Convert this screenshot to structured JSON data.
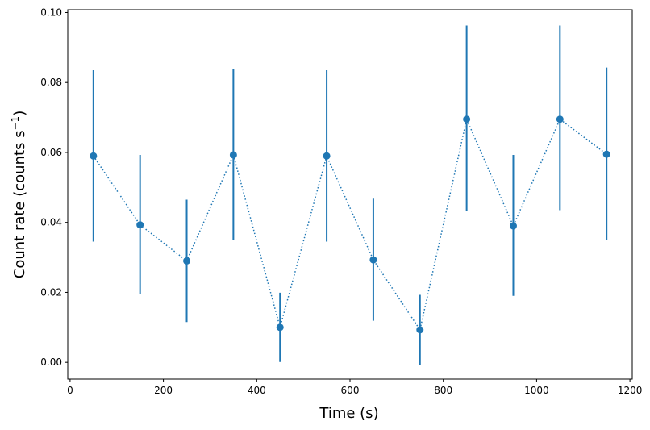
{
  "chart_data": {
    "type": "scatter",
    "title": "",
    "xlabel": "Time (s)",
    "ylabel_prefix": "Count rate (counts s",
    "ylabel_superscript": "−1",
    "ylabel_suffix": ")",
    "xlim": [
      -5,
      1205
    ],
    "ylim": [
      -0.0048,
      0.1008
    ],
    "x_ticks": [
      0,
      200,
      400,
      600,
      800,
      1000,
      1200
    ],
    "x_tick_labels": [
      "0",
      "200",
      "400",
      "600",
      "800",
      "1000",
      "1200"
    ],
    "y_ticks": [
      0.0,
      0.02,
      0.04,
      0.06,
      0.08,
      0.1
    ],
    "y_tick_labels": [
      "0.00",
      "0.02",
      "0.04",
      "0.06",
      "0.08",
      "0.10"
    ],
    "grid": false,
    "legend": "none",
    "series": [
      {
        "color": "#1f77b4",
        "line_style": "dotted",
        "marker": "circle",
        "x": [
          50,
          150,
          250,
          350,
          450,
          550,
          650,
          750,
          850,
          950,
          1050,
          1150
        ],
        "y": [
          0.059,
          0.0393,
          0.029,
          0.0593,
          0.01,
          0.059,
          0.0293,
          0.0093,
          0.0695,
          0.039,
          0.0695,
          0.0595
        ],
        "y_err_low": [
          0.0345,
          0.0195,
          0.0115,
          0.035,
          0.0001,
          0.0345,
          0.0119,
          -0.0007,
          0.0432,
          0.019,
          0.0435,
          0.0349
        ],
        "y_err_high": [
          0.0835,
          0.0593,
          0.0465,
          0.0838,
          0.0199,
          0.0835,
          0.0468,
          0.0193,
          0.0963,
          0.0593,
          0.0963,
          0.0843
        ]
      }
    ]
  }
}
